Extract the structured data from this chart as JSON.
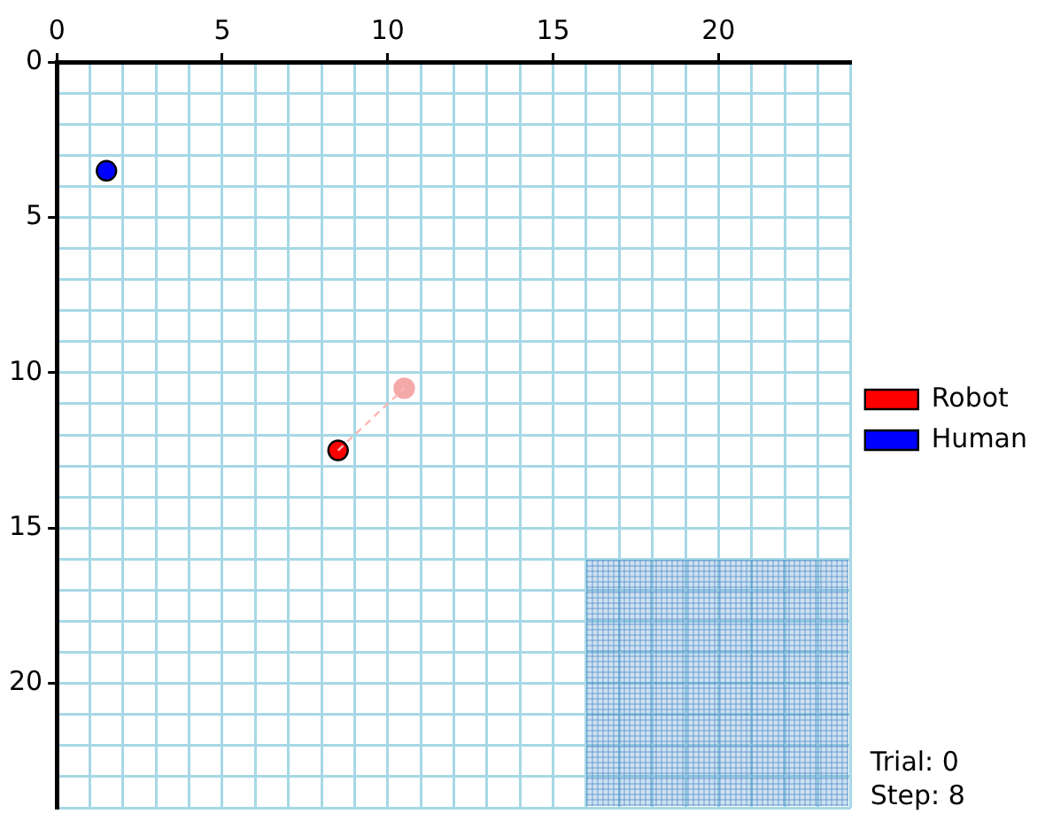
{
  "chart_data": {
    "type": "scatter",
    "xlim": [
      0,
      24
    ],
    "ylim": [
      24,
      0
    ],
    "xticks": [
      0,
      {
        "value": 1,
        "label": null
      },
      {
        "value": 2,
        "label": null
      },
      {
        "value": 3,
        "label": null
      },
      {
        "value": 4,
        "label": null
      },
      5,
      {
        "value": 6,
        "label": null
      },
      {
        "value": 7,
        "label": null
      },
      {
        "value": 8,
        "label": null
      },
      {
        "value": 9,
        "label": null
      },
      10,
      {
        "value": 11,
        "label": null
      },
      {
        "value": 12,
        "label": null
      },
      {
        "value": 13,
        "label": null
      },
      {
        "value": 14,
        "label": null
      },
      15,
      {
        "value": 16,
        "label": null
      },
      {
        "value": 17,
        "label": null
      },
      {
        "value": 18,
        "label": null
      },
      {
        "value": 19,
        "label": null
      },
      20,
      {
        "value": 21,
        "label": null
      },
      {
        "value": 22,
        "label": null
      },
      {
        "value": 23,
        "label": null
      },
      {
        "value": 24,
        "label": null
      }
    ],
    "yticks": [
      0,
      {
        "value": 1,
        "label": null
      },
      {
        "value": 2,
        "label": null
      },
      {
        "value": 3,
        "label": null
      },
      {
        "value": 4,
        "label": null
      },
      5,
      {
        "value": 6,
        "label": null
      },
      {
        "value": 7,
        "label": null
      },
      {
        "value": 8,
        "label": null
      },
      {
        "value": 9,
        "label": null
      },
      10,
      {
        "value": 11,
        "label": null
      },
      {
        "value": 12,
        "label": null
      },
      {
        "value": 13,
        "label": null
      },
      {
        "value": 14,
        "label": null
      },
      15,
      {
        "value": 16,
        "label": null
      },
      {
        "value": 17,
        "label": null
      },
      {
        "value": 18,
        "label": null
      },
      {
        "value": 19,
        "label": null
      },
      20,
      {
        "value": 21,
        "label": null
      },
      {
        "value": 22,
        "label": null
      },
      {
        "value": 23,
        "label": null
      },
      {
        "value": 24,
        "label": null
      }
    ],
    "grid": true,
    "legend": "right",
    "marker": "circle",
    "series": [
      {
        "type": "line",
        "color": "#ffb6b6",
        "line_style": "dashed",
        "marker": "none",
        "x": [
          8.5,
          10.5
        ],
        "values": [
          12.5,
          10.5
        ]
      },
      {
        "color": "#f4a9a9",
        "x": [
          10.5
        ],
        "values": [
          10.5
        ]
      },
      {
        "name": "Robot",
        "color": "#ff0000",
        "x": [
          8.5
        ],
        "values": [
          12.5
        ]
      },
      {
        "name": "Human",
        "color": "#0000ff",
        "x": [
          1.5
        ],
        "values": [
          3.5
        ]
      }
    ],
    "annotations": [
      "Trial: 0",
      "Step: 8"
    ]
  }
}
